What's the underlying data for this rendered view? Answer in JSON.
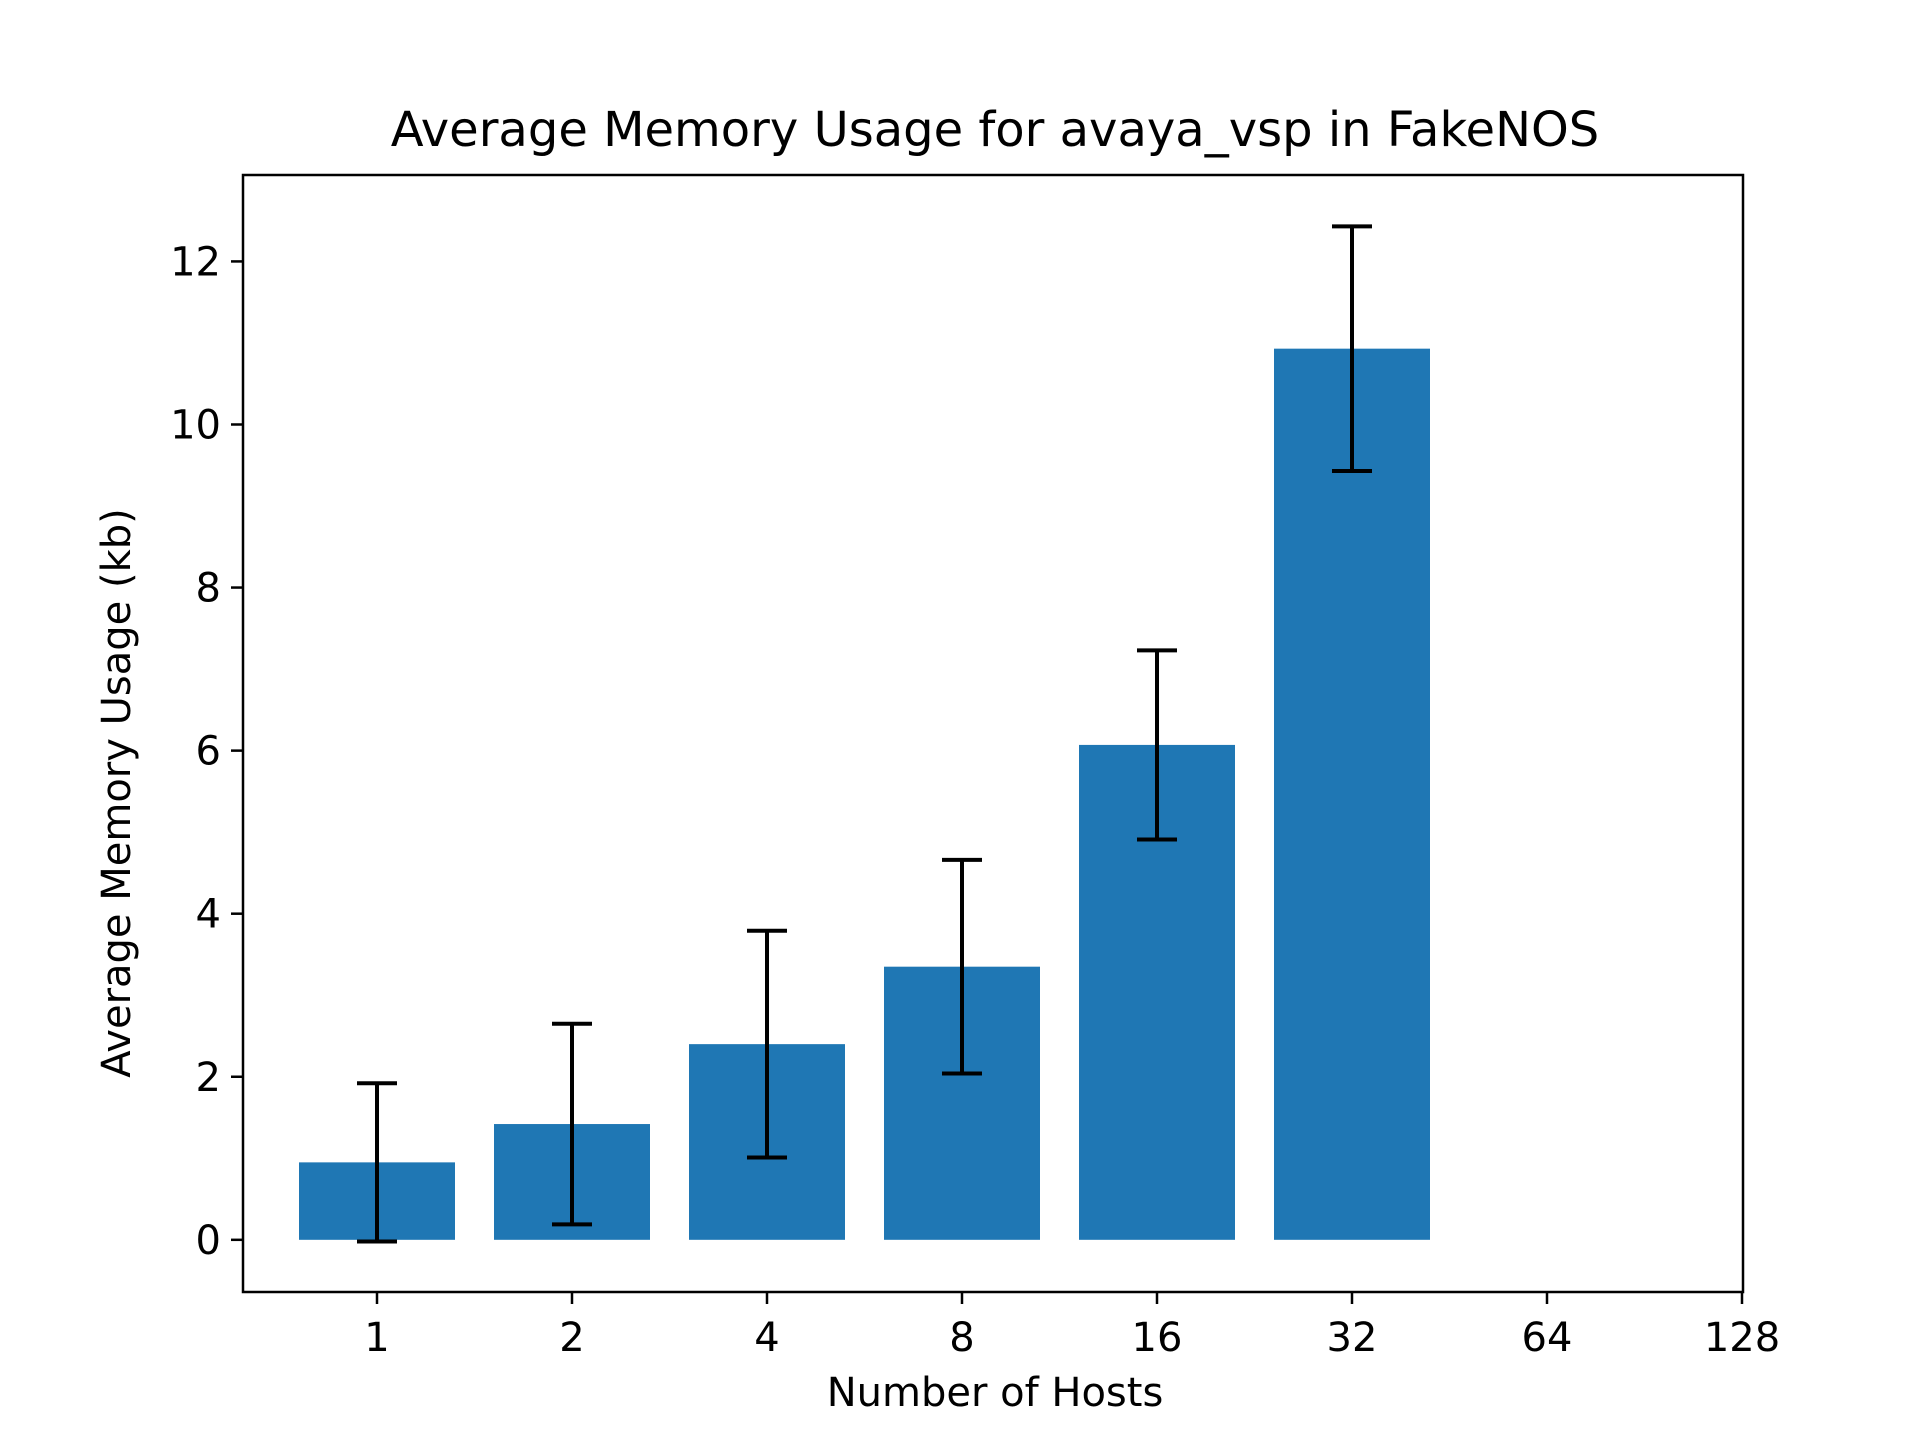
{
  "chart_data": {
    "type": "bar",
    "title": "Average Memory Usage for avaya_vsp in FakeNOS",
    "xlabel": "Number of Hosts",
    "ylabel": "Average Memory Usage (kb)",
    "categories": [
      "1",
      "2",
      "4",
      "8",
      "16",
      "32"
    ],
    "x_tick_labels": [
      "1",
      "2",
      "4",
      "8",
      "16",
      "32",
      "64",
      "128"
    ],
    "values": [
      0.95,
      1.42,
      2.4,
      3.35,
      6.07,
      10.93
    ],
    "errors": [
      0.97,
      1.23,
      1.39,
      1.31,
      1.16,
      1.5
    ],
    "ylim": [
      -0.64,
      13.06
    ],
    "yticks": [
      0,
      2,
      4,
      6,
      8,
      10,
      12
    ],
    "grid": false,
    "bar_color": "#1f77b4",
    "error_color": "#000000"
  }
}
